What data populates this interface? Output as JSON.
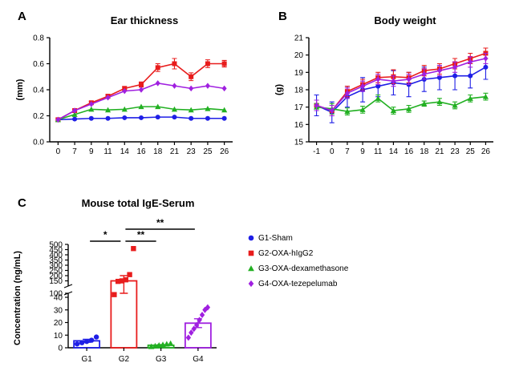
{
  "chart_data": [
    {
      "type": "line",
      "panel": "A",
      "title": "Ear thickness",
      "xlabel": "",
      "ylabel": "(mm)",
      "x": [
        0,
        7,
        9,
        11,
        14,
        16,
        18,
        21,
        23,
        25,
        26
      ],
      "ylim": [
        0.0,
        0.8
      ],
      "yticks": [
        "0.0",
        "0.2",
        "0.4",
        "0.6",
        "0.8"
      ],
      "series": [
        {
          "name": "G1-Sham",
          "color": "#1f1fe6",
          "marker": "circle",
          "values": [
            0.17,
            0.175,
            0.18,
            0.18,
            0.185,
            0.185,
            0.19,
            0.19,
            0.18,
            0.18,
            0.18
          ]
        },
        {
          "name": "G2-OXA-hIgG2",
          "color": "#e81c1c",
          "marker": "square",
          "values": [
            0.17,
            0.24,
            0.3,
            0.35,
            0.41,
            0.44,
            0.57,
            0.6,
            0.5,
            0.6,
            0.6
          ],
          "errors": [
            0.01,
            0.01,
            0.01,
            0.015,
            0.015,
            0.02,
            0.03,
            0.04,
            0.03,
            0.03,
            0.025
          ]
        },
        {
          "name": "G3-OXA-dexamethasone",
          "color": "#22b022",
          "marker": "triangle",
          "values": [
            0.17,
            0.21,
            0.25,
            0.245,
            0.25,
            0.27,
            0.27,
            0.25,
            0.245,
            0.255,
            0.245
          ]
        },
        {
          "name": "G4-OXA-tezepelumab",
          "color": "#a020e0",
          "marker": "diamond",
          "values": [
            0.17,
            0.24,
            0.29,
            0.34,
            0.39,
            0.4,
            0.45,
            0.43,
            0.41,
            0.43,
            0.41
          ]
        }
      ]
    },
    {
      "type": "line",
      "panel": "B",
      "title": "Body weight",
      "xlabel": "",
      "ylabel": "(g)",
      "x": [
        -1,
        0,
        7,
        9,
        11,
        14,
        16,
        18,
        21,
        23,
        25,
        26
      ],
      "ylim": [
        15,
        21
      ],
      "yticks": [
        "15",
        "16",
        "17",
        "18",
        "19",
        "20",
        "21"
      ],
      "series": [
        {
          "name": "G1-Sham",
          "color": "#1f1fe6",
          "marker": "circle",
          "values": [
            17.1,
            16.7,
            17.6,
            18.0,
            18.2,
            18.4,
            18.3,
            18.6,
            18.7,
            18.8,
            18.8,
            19.3
          ],
          "errors": [
            0.6,
            0.6,
            0.6,
            0.7,
            0.6,
            0.7,
            0.7,
            0.7,
            0.7,
            0.8,
            0.7,
            0.7
          ]
        },
        {
          "name": "G2-OXA-hIgG2",
          "color": "#e81c1c",
          "marker": "square",
          "values": [
            17.1,
            16.8,
            17.9,
            18.3,
            18.7,
            18.75,
            18.7,
            19.1,
            19.2,
            19.5,
            19.8,
            20.1
          ],
          "errors": [
            0.3,
            0.3,
            0.3,
            0.3,
            0.3,
            0.4,
            0.3,
            0.3,
            0.3,
            0.3,
            0.3,
            0.3
          ]
        },
        {
          "name": "G3-OXA-dexamethasone",
          "color": "#22b022",
          "marker": "triangle",
          "values": [
            17.0,
            16.9,
            16.75,
            16.85,
            17.5,
            16.8,
            16.9,
            17.2,
            17.3,
            17.1,
            17.5,
            17.6
          ],
          "errors": [
            0.2,
            0.3,
            0.2,
            0.2,
            0.2,
            0.2,
            0.2,
            0.15,
            0.2,
            0.2,
            0.2,
            0.2
          ]
        },
        {
          "name": "G4-OXA-tezepelumab",
          "color": "#a020e0",
          "marker": "diamond",
          "values": [
            17.1,
            16.8,
            17.8,
            18.2,
            18.6,
            18.5,
            18.6,
            18.9,
            19.1,
            19.3,
            19.6,
            19.8
          ],
          "errors": [
            0.3,
            0.3,
            0.3,
            0.3,
            0.3,
            0.3,
            0.3,
            0.3,
            0.3,
            0.3,
            0.3,
            0.3
          ]
        }
      ]
    },
    {
      "type": "bar",
      "panel": "C",
      "title": "Mouse total IgE-Serum",
      "xlabel": "",
      "ylabel": "Concentration (ng/mL)",
      "categories": [
        "G1",
        "G2",
        "G3",
        "G4"
      ],
      "axis_break": {
        "lower_ticks": [
          "0",
          "10",
          "20",
          "30",
          "40",
          "100"
        ],
        "upper_ticks": [
          "150",
          "200",
          "250",
          "300",
          "350",
          "400",
          "450",
          "500"
        ]
      },
      "values": [
        5.5,
        150,
        2.0,
        19.5
      ],
      "errors": [
        1.2,
        50,
        0.5,
        3.5
      ],
      "colors": [
        "#1f1fe6",
        "#e81c1c",
        "#22b022",
        "#a020e0"
      ],
      "markers": [
        "circle",
        "square",
        "triangle",
        "diamond"
      ],
      "points": [
        [
          3,
          4,
          5,
          6,
          8.5
        ],
        [
          80,
          145,
          150,
          160,
          210,
          460
        ],
        [
          1,
          1.5,
          2,
          2.5,
          3,
          3.5
        ],
        [
          8,
          12,
          15,
          18,
          22,
          26,
          30,
          32
        ]
      ],
      "significance": [
        {
          "from": "G1",
          "to": "G2",
          "label": "*"
        },
        {
          "from": "G2",
          "to": "G3",
          "label": "**"
        },
        {
          "from": "G2",
          "to": "G4",
          "label": "**"
        }
      ]
    }
  ],
  "labels": {
    "panel_a": "A",
    "panel_b": "B",
    "panel_c": "C"
  },
  "legend": [
    {
      "name": "G1-Sham",
      "color": "#1f1fe6",
      "marker": "circle"
    },
    {
      "name": "G2-OXA-hIgG2",
      "color": "#e81c1c",
      "marker": "square"
    },
    {
      "name": "G3-OXA-dexamethasone",
      "color": "#22b022",
      "marker": "triangle"
    },
    {
      "name": "G4-OXA-tezepelumab",
      "color": "#a020e0",
      "marker": "diamond"
    }
  ]
}
